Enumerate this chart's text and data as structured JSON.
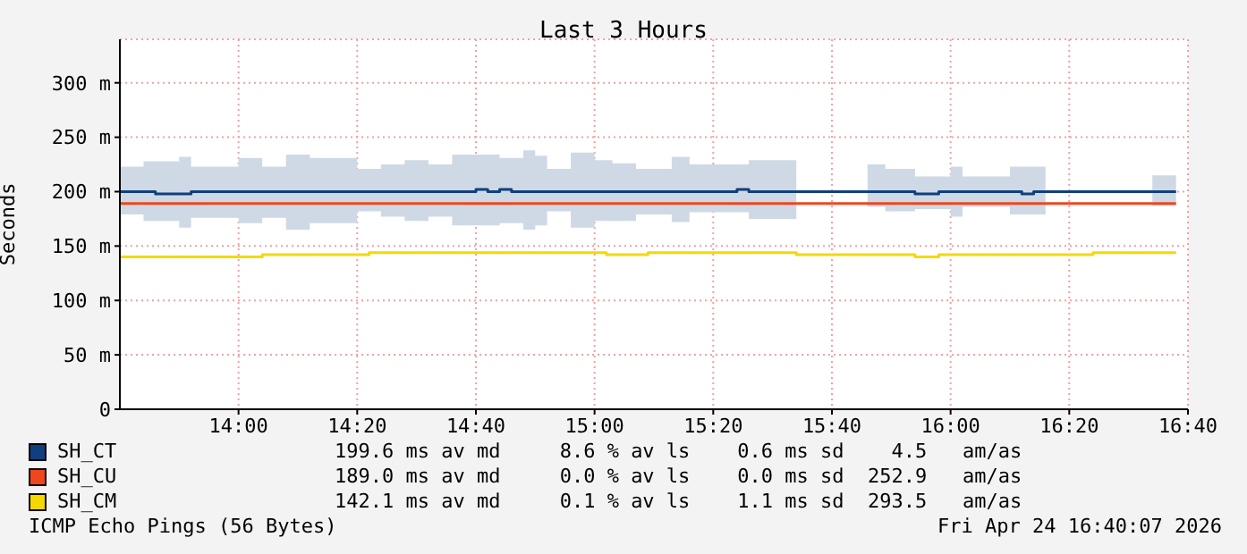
{
  "chart_data": {
    "type": "step",
    "title": "Last 3 Hours",
    "ylabel": "Seconds",
    "xlim": [
      13.6667,
      16.6667
    ],
    "xticks": [
      {
        "value": 14,
        "label": "14:00"
      },
      {
        "value": 14.3333,
        "label": "14:20"
      },
      {
        "value": 14.6667,
        "label": "14:40"
      },
      {
        "value": 15,
        "label": "15:00"
      },
      {
        "value": 15.3333,
        "label": "15:20"
      },
      {
        "value": 15.6667,
        "label": "15:40"
      },
      {
        "value": 16,
        "label": "16:00"
      },
      {
        "value": 16.3333,
        "label": "16:20"
      },
      {
        "value": 16.6667,
        "label": "16:40"
      }
    ],
    "ylim": [
      0,
      340
    ],
    "yticks": [
      0,
      {
        "value": 50,
        "label": "50 m"
      },
      {
        "value": 100,
        "label": "100 m"
      },
      {
        "value": 150,
        "label": "150 m"
      },
      {
        "value": 200,
        "label": "200 m"
      },
      {
        "value": 250,
        "label": "250 m"
      },
      {
        "value": 300,
        "label": "300 m"
      }
    ],
    "grid": true,
    "legend": "bottom",
    "series": [
      {
        "name": "SH_CT",
        "color": "#0f3f7f",
        "x": [
          13.6667,
          13.7333,
          13.7667,
          13.8333,
          13.8667,
          14.0,
          14.0667,
          14.1333,
          14.2,
          14.3333,
          14.4,
          14.4667,
          14.5333,
          14.6,
          14.6667,
          14.7,
          14.7333,
          14.7667,
          14.8,
          14.8333,
          14.8667,
          14.9333,
          15.0,
          15.05,
          15.1167,
          15.2167,
          15.2667,
          15.4,
          15.4333,
          15.5667,
          15.7,
          15.7667,
          15.8167,
          15.9,
          15.9667,
          16.0,
          16.0333,
          16.1667,
          16.2,
          16.2333,
          16.2667,
          16.5,
          16.5667,
          16.6333
        ],
        "values": [
          200,
          200,
          198,
          198,
          200,
          200,
          200,
          200,
          200,
          200,
          200,
          200,
          200,
          200,
          202,
          200,
          202,
          200,
          200,
          200,
          200,
          200,
          200,
          200,
          200,
          200,
          200,
          202,
          200,
          200,
          200,
          200,
          200,
          198,
          200,
          200,
          200,
          200,
          198,
          200,
          200,
          200,
          200,
          200
        ],
        "upper": [
          223,
          228,
          228,
          232,
          223,
          231,
          223,
          234,
          231,
          221,
          225,
          229,
          225,
          234,
          234,
          234,
          231,
          231,
          238,
          233,
          221,
          236,
          229,
          226,
          221,
          232,
          225,
          225,
          229,
          215,
          null,
          225,
          221,
          214,
          214,
          223,
          214,
          223,
          223,
          223,
          221,
          null,
          215,
          215
        ],
        "lower": [
          179,
          173,
          173,
          167,
          176,
          171,
          176,
          165,
          171,
          182,
          177,
          173,
          177,
          169,
          169,
          169,
          171,
          171,
          165,
          169,
          182,
          167,
          173,
          173,
          179,
          172,
          181,
          181,
          175,
          187,
          null,
          186,
          182,
          184,
          184,
          177,
          186,
          179,
          179,
          179,
          182,
          null,
          187,
          187
        ]
      },
      {
        "name": "SH_CU",
        "color": "#f0461e",
        "x": [
          13.6667,
          16.6333
        ],
        "values": [
          189,
          189
        ]
      },
      {
        "name": "SH_CM",
        "color": "#f5d800",
        "x": [
          13.6667,
          14.0667,
          14.3667,
          15.0333,
          15.15,
          15.5667,
          15.9,
          15.9667,
          16.4,
          16.6333
        ],
        "values": [
          140,
          142,
          144,
          142,
          144,
          142,
          140,
          142,
          144,
          144
        ]
      }
    ],
    "annotations": [
      "199.6 ms av md     8.6 % av ls    0.6 ms sd    4.5   am/as",
      "189.0 ms av md     0.0 % av ls    0.0 ms sd  252.9   am/as",
      "142.1 ms av md     0.1 % av ls    1.1 ms sd  293.5   am/as",
      "ICMP Echo Pings (56 Bytes)",
      "Fri Apr 24 16:40:07 2026"
    ]
  }
}
